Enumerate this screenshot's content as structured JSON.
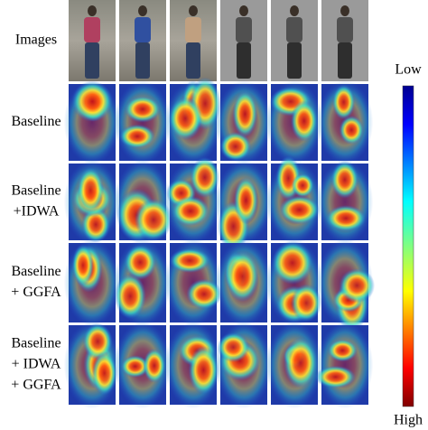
{
  "rows": [
    {
      "label_lines": [
        "Images"
      ]
    },
    {
      "label_lines": [
        "Baseline"
      ]
    },
    {
      "label_lines": [
        "Baseline",
        "+IDWA"
      ]
    },
    {
      "label_lines": [
        "Baseline",
        "+ GGFA"
      ]
    },
    {
      "label_lines": [
        "Baseline",
        "+ IDWA",
        "+ GGFA"
      ]
    }
  ],
  "colorbar": {
    "low": "Low",
    "high": "High"
  }
}
